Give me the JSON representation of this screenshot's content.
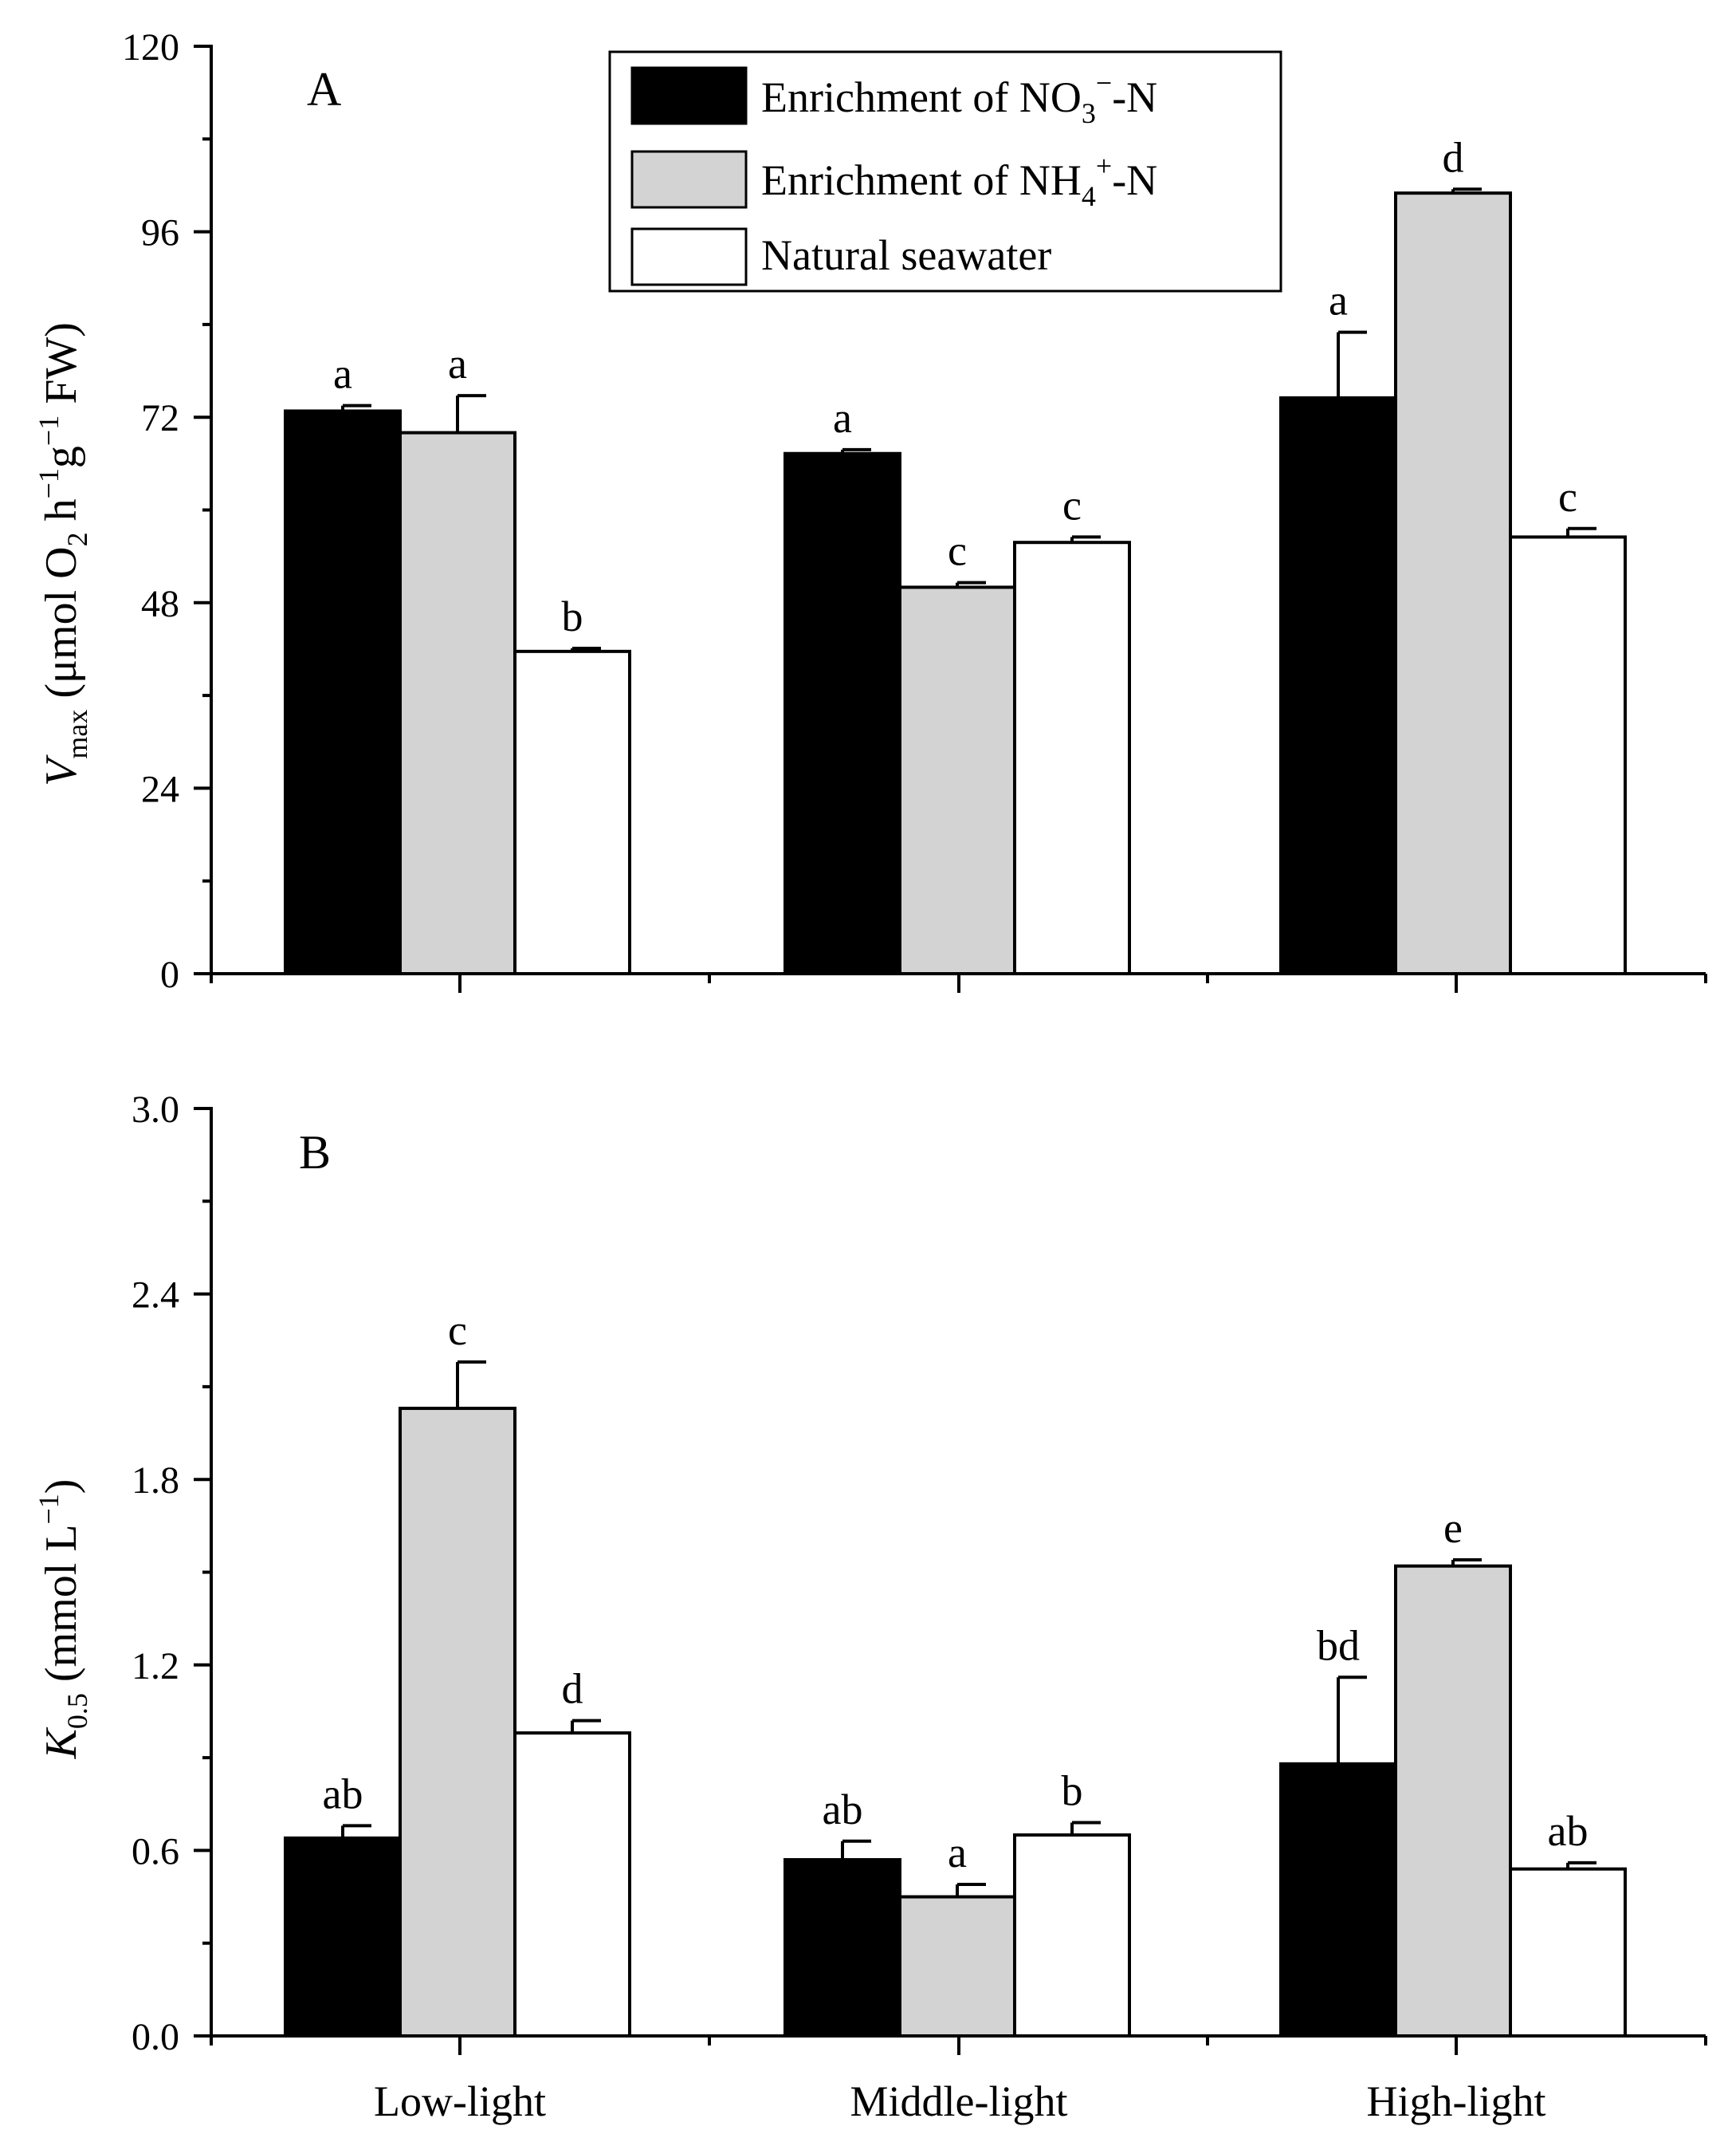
{
  "chart_data": [
    {
      "type": "bar",
      "panel_label": "A",
      "ylabel": {
        "italic": "V",
        "sub": "max",
        "text": " (μmol O",
        "o2_sub": "2",
        "rest": " h",
        "h_sup": "−1",
        "g": "g",
        "g_sup": "−1",
        "end": " FW)"
      },
      "ylim": [
        0,
        120
      ],
      "yticks": [
        "0",
        "24",
        "48",
        "72",
        "96",
        "120"
      ],
      "categories": [
        "Low-light",
        "Middle-light",
        "High-light"
      ],
      "series": [
        {
          "name": "Enrichment of NO3−-N",
          "values": [
            72.8,
            67.3,
            74.5
          ],
          "errors": [
            0.7,
            0.5,
            8.5
          ],
          "letters": [
            "a",
            "a",
            "a"
          ]
        },
        {
          "name": "Enrichment of NH4+-N",
          "values": [
            70.0,
            50.0,
            101.0
          ],
          "errors": [
            4.8,
            0.6,
            0.5
          ],
          "letters": [
            "a",
            "c",
            "d"
          ]
        },
        {
          "name": "Natural seawater",
          "values": [
            41.7,
            55.8,
            56.5
          ],
          "errors": [
            0.4,
            0.7,
            1.1
          ],
          "letters": [
            "b",
            "c",
            "c"
          ]
        }
      ]
    },
    {
      "type": "bar",
      "panel_label": "B",
      "ylabel": {
        "italic": "K",
        "sub": "0.5",
        "text": " (mmol L",
        "sup": "−1",
        "end": ")"
      },
      "ylim": [
        0,
        3.0
      ],
      "yticks": [
        "0.0",
        "0.6",
        "1.2",
        "1.8",
        "2.4",
        "3.0"
      ],
      "categories": [
        "Low-light",
        "Middle-light",
        "High-light"
      ],
      "series": [
        {
          "name": "Enrichment of NO3−-N",
          "values": [
            0.64,
            0.57,
            0.88
          ],
          "errors": [
            0.04,
            0.06,
            0.28
          ],
          "letters": [
            "ab",
            "ab",
            "bd"
          ]
        },
        {
          "name": "Enrichment of NH4+-N",
          "values": [
            2.03,
            0.45,
            1.52
          ],
          "errors": [
            0.15,
            0.04,
            0.02
          ],
          "letters": [
            "c",
            "a",
            "e"
          ]
        },
        {
          "name": "Natural seawater",
          "values": [
            0.98,
            0.65,
            0.54
          ],
          "errors": [
            0.04,
            0.04,
            0.02
          ],
          "letters": [
            "d",
            "b",
            "ab"
          ]
        }
      ]
    }
  ],
  "legend": {
    "items": [
      {
        "pre": "Enrichment of NO",
        "sub": "3",
        "sup": "−",
        "post": "-N"
      },
      {
        "pre": "Enrichment of NH",
        "sub": "4",
        "sup": "+",
        "post": "-N"
      },
      {
        "pre": "Natural seawater",
        "sub": "",
        "sup": "",
        "post": ""
      }
    ]
  },
  "colors": {
    "series": [
      "#000000",
      "#d3d3d3",
      "#ffffff"
    ],
    "edge": "#000000"
  }
}
